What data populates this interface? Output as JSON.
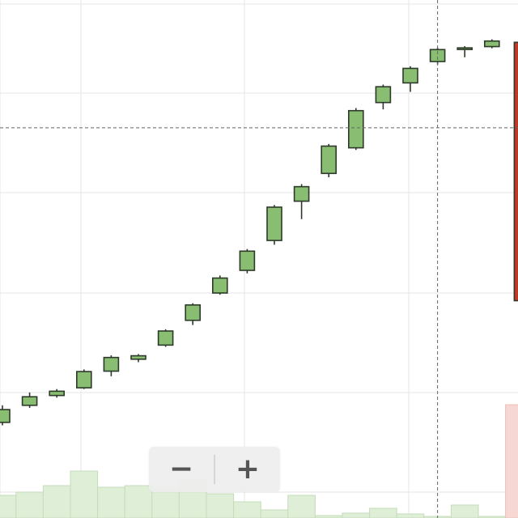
{
  "chart_data": {
    "type": "candlestick",
    "x_range": [
      0,
      19
    ],
    "y_range": [
      0,
      105
    ],
    "grid": true,
    "colors": {
      "rising": "#89bd72",
      "falling": "#c0392b",
      "outline": "#2d3a2a",
      "volume_rising": "#dfeed6",
      "volume_falling": "#f6d7d3",
      "grid": "#e5e5e5",
      "crosshair": "#666666"
    },
    "candles": [
      {
        "x": 0,
        "open": 9.5,
        "close": 12.5,
        "high": 13.5,
        "low": 8.8
      },
      {
        "x": 1,
        "open": 13.5,
        "close": 15.5,
        "high": 16.5,
        "low": 12.9
      },
      {
        "x": 2,
        "open": 15.8,
        "close": 16.8,
        "high": 17.3,
        "low": 15.3
      },
      {
        "x": 3,
        "open": 17.6,
        "close": 21.4,
        "high": 21.9,
        "low": 17.3
      },
      {
        "x": 4,
        "open": 21.5,
        "close": 24.7,
        "high": 25.2,
        "low": 20.3
      },
      {
        "x": 5,
        "open": 24.3,
        "close": 25.1,
        "high": 25.5,
        "low": 23.6
      },
      {
        "x": 6,
        "open": 27.6,
        "close": 30.9,
        "high": 31.3,
        "low": 27.2
      },
      {
        "x": 7,
        "open": 33.4,
        "close": 37.0,
        "high": 37.4,
        "low": 32.3
      },
      {
        "x": 8,
        "open": 39.8,
        "close": 43.3,
        "high": 43.9,
        "low": 39.4
      },
      {
        "x": 9,
        "open": 45.1,
        "close": 49.6,
        "high": 50.1,
        "low": 44.4
      },
      {
        "x": 10,
        "open": 52.1,
        "close": 59.9,
        "high": 60.4,
        "low": 51.1
      },
      {
        "x": 11,
        "open": 61.3,
        "close": 64.7,
        "high": 65.3,
        "low": 57.1
      },
      {
        "x": 12,
        "open": 67.8,
        "close": 74.2,
        "high": 74.7,
        "low": 66.9
      },
      {
        "x": 13,
        "open": 73.8,
        "close": 82.5,
        "high": 83.1,
        "low": 73.3
      },
      {
        "x": 14,
        "open": 84.4,
        "close": 88.1,
        "high": 88.6,
        "low": 82.8
      },
      {
        "x": 15,
        "open": 89.0,
        "close": 92.4,
        "high": 92.9,
        "low": 86.9
      },
      {
        "x": 16,
        "open": 94.0,
        "close": 96.8,
        "high": 97.3,
        "low": 93.3
      },
      {
        "x": 17,
        "open": 97.0,
        "close": 97.2,
        "high": 97.6,
        "low": 95.0
      },
      {
        "x": 18,
        "open": 97.5,
        "close": 98.8,
        "high": 99.2,
        "low": 97.1
      },
      {
        "x": 19,
        "open": 98.5,
        "close": 38.0,
        "high": 98.7,
        "low": 37.8
      }
    ],
    "volume": [
      {
        "x": 0,
        "value": 28
      },
      {
        "x": 1,
        "value": 32
      },
      {
        "x": 2,
        "value": 40
      },
      {
        "x": 3,
        "value": 58
      },
      {
        "x": 4,
        "value": 38
      },
      {
        "x": 5,
        "value": 40
      },
      {
        "x": 6,
        "value": 36
      },
      {
        "x": 7,
        "value": 47
      },
      {
        "x": 8,
        "value": 30
      },
      {
        "x": 9,
        "value": 20
      },
      {
        "x": 10,
        "value": 10
      },
      {
        "x": 11,
        "value": 28
      },
      {
        "x": 12,
        "value": 3
      },
      {
        "x": 13,
        "value": 6
      },
      {
        "x": 14,
        "value": 12
      },
      {
        "x": 15,
        "value": 5
      },
      {
        "x": 16,
        "value": 2
      },
      {
        "x": 17,
        "value": 16
      },
      {
        "x": 18,
        "value": 2
      },
      {
        "x": 19,
        "value": 140
      }
    ],
    "volume_range": [
      0,
      150
    ],
    "crosshair": {
      "x": 16,
      "y": 78.5
    }
  },
  "zoom_controls": {
    "zoom_out_label": "−",
    "zoom_in_label": "+"
  }
}
